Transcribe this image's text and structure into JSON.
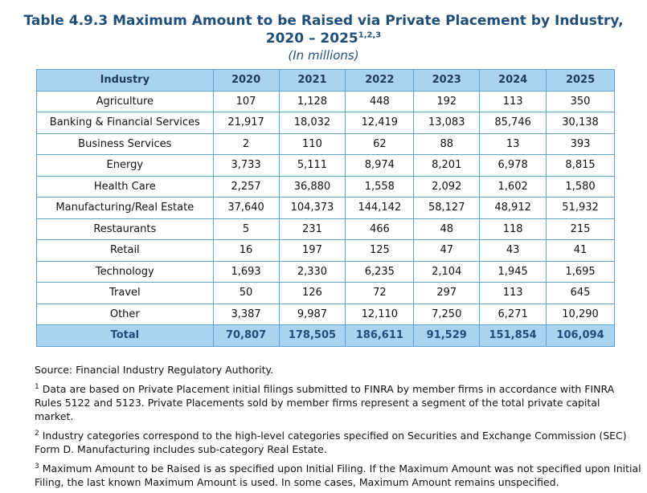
{
  "title": {
    "line1": "Table 4.9.3 Maximum Amount to be Raised via Private Placement by Industry,",
    "line2": "2020 – 2025",
    "superscript": "1,2,3",
    "subtitle": "(In millions)"
  },
  "table": {
    "header": [
      "Industry",
      "2020",
      "2021",
      "2022",
      "2023",
      "2024",
      "2025"
    ],
    "rows": [
      [
        "Agriculture",
        "107",
        "1,128",
        "448",
        "192",
        "113",
        "350"
      ],
      [
        "Banking & Financial Services",
        "21,917",
        "18,032",
        "12,419",
        "13,083",
        "85,746",
        "30,138"
      ],
      [
        "Business Services",
        "2",
        "110",
        "62",
        "88",
        "13",
        "393"
      ],
      [
        "Energy",
        "3,733",
        "5,111",
        "8,974",
        "8,201",
        "6,978",
        "8,815"
      ],
      [
        "Health Care",
        "2,257",
        "36,880",
        "1,558",
        "2,092",
        "1,602",
        "1,580"
      ],
      [
        "Manufacturing/Real Estate",
        "37,640",
        "104,373",
        "144,142",
        "58,127",
        "48,912",
        "51,932"
      ],
      [
        "Restaurants",
        "5",
        "231",
        "466",
        "48",
        "118",
        "215"
      ],
      [
        "Retail",
        "16",
        "197",
        "125",
        "47",
        "43",
        "41"
      ],
      [
        "Technology",
        "1,693",
        "2,330",
        "6,235",
        "2,104",
        "1,945",
        "1,695"
      ],
      [
        "Travel",
        "50",
        "126",
        "72",
        "297",
        "113",
        "645"
      ],
      [
        "Other",
        "3,387",
        "9,987",
        "12,110",
        "7,250",
        "6,271",
        "10,290"
      ]
    ],
    "total": [
      "Total",
      "70,807",
      "178,505",
      "186,611",
      "91,529",
      "151,854",
      "106,094"
    ]
  },
  "source": "Source: Financial Industry Regulatory Authority.",
  "footnotes": [
    {
      "mark": "1",
      "text": "Data are based on Private Placement initial filings submitted to FINRA by member firms in accordance with FINRA Rules 5122 and 5123. Private Placements sold by member firms represent a segment of the total private capital market."
    },
    {
      "mark": "2",
      "text": "Industry categories correspond to the high-level categories specified on Securities and Exchange Commission (SEC) Form D. Manufacturing includes sub-category Real Estate."
    },
    {
      "mark": "3",
      "text": "Maximum Amount to be Raised is as specified upon Initial Filing. If the Maximum Amount was not specified upon Initial Filing, the last known Maximum Amount is used. In some cases, Maximum Amount remains unspecified."
    }
  ]
}
